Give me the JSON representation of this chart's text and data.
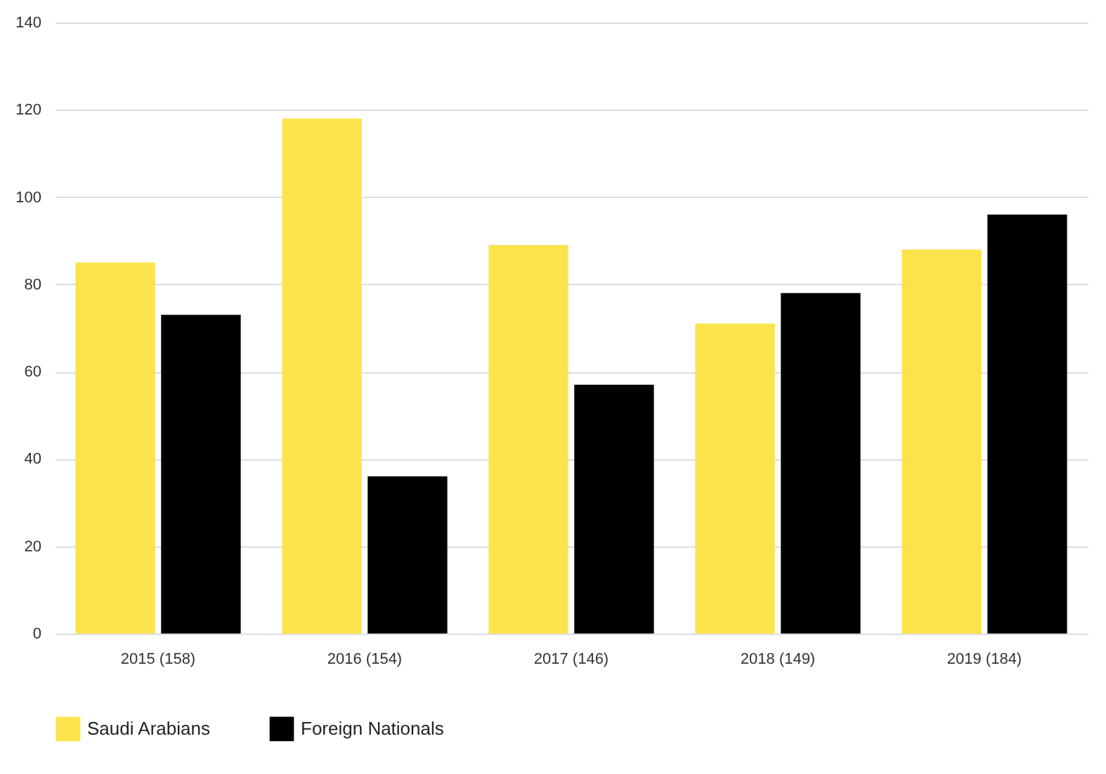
{
  "chart_data": {
    "type": "bar",
    "categories": [
      "2015 (158)",
      "2016 (154)",
      "2017 (146)",
      "2018 (149)",
      "2019 (184)"
    ],
    "series": [
      {
        "name": "Saudi Arabians",
        "color": "#fbe44b",
        "values": [
          85,
          118,
          89,
          71,
          88
        ]
      },
      {
        "name": "Foreign Nationals",
        "color": "#000000",
        "values": [
          73,
          36,
          57,
          78,
          96
        ]
      }
    ],
    "ylim": [
      0,
      140
    ],
    "yticks": [
      0,
      20,
      40,
      60,
      80,
      100,
      120,
      140
    ],
    "grid": "y",
    "legend": "bottom"
  }
}
